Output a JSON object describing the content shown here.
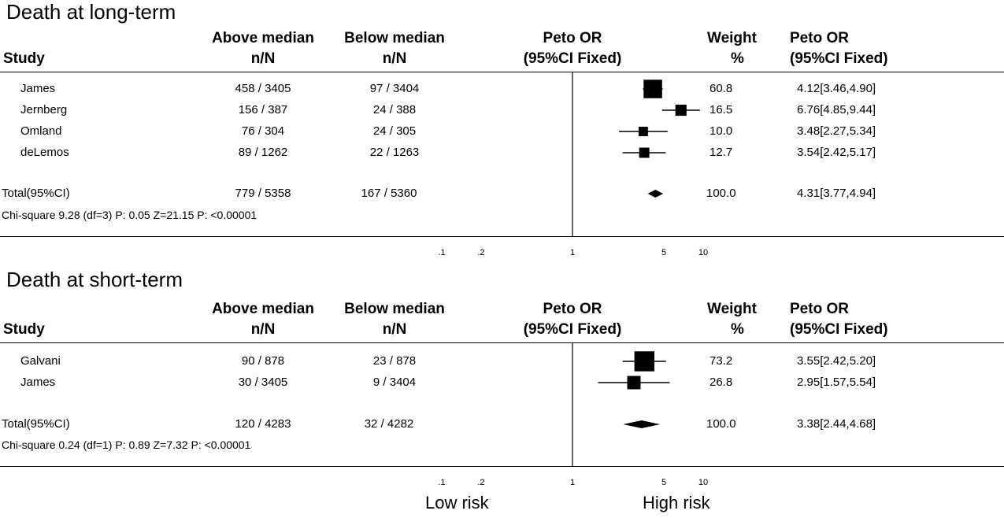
{
  "chart_data": [
    {
      "type": "forest",
      "title": "Death at long-term",
      "columns": {
        "study": "Study",
        "above_top": "Above median",
        "above_bottom": "n/N",
        "below_top": "Below median",
        "below_bottom": "n/N",
        "or_top": "Peto OR",
        "or_bottom": "(95%CI Fixed)",
        "weight_top": "Weight",
        "weight_bottom": "%",
        "ci_top": "Peto OR",
        "ci_bottom": "(95%CI Fixed)"
      },
      "studies": [
        {
          "name": "James",
          "above": "458 / 3405",
          "below": "97 / 3404",
          "weight": "60.8",
          "ci_text": "4.12[3.46,4.90]",
          "or": 4.12,
          "lo": 3.46,
          "hi": 4.9,
          "w": 60.8
        },
        {
          "name": "Jernberg",
          "above": "156 / 387",
          "below": "24 / 388",
          "weight": "16.5",
          "ci_text": "6.76[4.85,9.44]",
          "or": 6.76,
          "lo": 4.85,
          "hi": 9.44,
          "w": 16.5
        },
        {
          "name": "Omland",
          "above": "76 / 304",
          "below": "24 / 305",
          "weight": "10.0",
          "ci_text": "3.48[2.27,5.34]",
          "or": 3.48,
          "lo": 2.27,
          "hi": 5.34,
          "w": 10.0
        },
        {
          "name": "deLemos",
          "above": "89 / 1262",
          "below": "22 / 1263",
          "weight": "12.7",
          "ci_text": "3.54[2.42,5.17]",
          "or": 3.54,
          "lo": 2.42,
          "hi": 5.17,
          "w": 12.7
        }
      ],
      "total": {
        "name": "Total(95%CI)",
        "above": "779 / 5358",
        "below": "167 / 5360",
        "weight": "100.0",
        "ci_text": "4.31[3.77,4.94]",
        "or": 4.31,
        "lo": 3.77,
        "hi": 4.94
      },
      "heterogeneity": "Chi-square 9.28 (df=3) P: 0.05  Z=21.15 P: <0.00001",
      "x_scale": "log",
      "x_ticks": [
        {
          "value": 0.1,
          "label": ".1"
        },
        {
          "value": 0.2,
          "label": ".2"
        },
        {
          "value": 1,
          "label": "1"
        },
        {
          "value": 5,
          "label": "5"
        },
        {
          "value": 10,
          "label": "10"
        }
      ]
    },
    {
      "type": "forest",
      "title": "Death at short-term",
      "columns": {
        "study": "Study",
        "above_top": "Above median",
        "above_bottom": "n/N",
        "below_top": "Below median",
        "below_bottom": "n/N",
        "or_top": "Peto OR",
        "or_bottom": "(95%CI Fixed)",
        "weight_top": "Weight",
        "weight_bottom": "%",
        "ci_top": "Peto OR",
        "ci_bottom": "(95%CI Fixed)"
      },
      "studies": [
        {
          "name": "Galvani",
          "above": "90 / 878",
          "below": "23 / 878",
          "weight": "73.2",
          "ci_text": "3.55[2.42,5.20]",
          "or": 3.55,
          "lo": 2.42,
          "hi": 5.2,
          "w": 73.2
        },
        {
          "name": "James",
          "above": "30 / 3405",
          "below": "9 / 3404",
          "weight": "26.8",
          "ci_text": "2.95[1.57,5.54]",
          "or": 2.95,
          "lo": 1.57,
          "hi": 5.54,
          "w": 26.8
        }
      ],
      "total": {
        "name": "Total(95%CI)",
        "above": "120 / 4283",
        "below": "32 / 4282",
        "weight": "100.0",
        "ci_text": "3.38[2.44,4.68]",
        "or": 3.38,
        "lo": 2.44,
        "hi": 4.68
      },
      "heterogeneity": "Chi-square 0.24 (df=1) P: 0.89  Z=7.32 P: <0.00001",
      "x_scale": "log",
      "x_ticks": [
        {
          "value": 0.1,
          "label": ".1"
        },
        {
          "value": 0.2,
          "label": ".2"
        },
        {
          "value": 1,
          "label": "1"
        },
        {
          "value": 5,
          "label": "5"
        },
        {
          "value": 10,
          "label": "10"
        }
      ]
    }
  ],
  "footer": {
    "left": "Low risk",
    "right": "High risk"
  }
}
